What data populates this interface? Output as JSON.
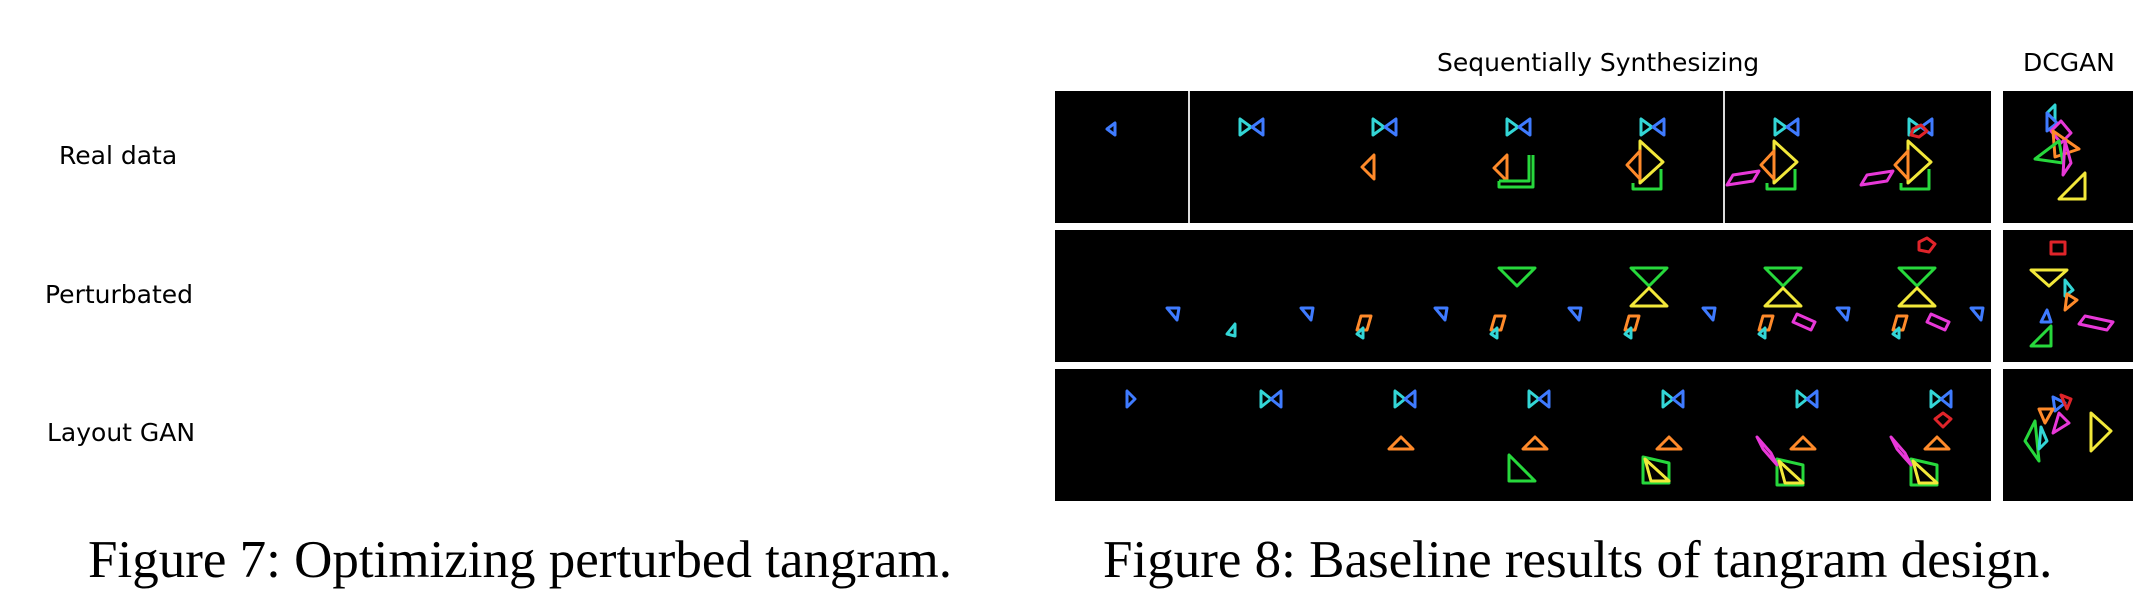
{
  "figure7": {
    "row_labels": [
      "Real data",
      "Perturbated",
      "Layout GAN"
    ],
    "caption": "Figure 7: Optimizing perturbed tangram."
  },
  "figure8": {
    "header_sequential": "Sequentially Synthesizing",
    "header_dcgan": "DCGAN",
    "caption": "Figure 8: Baseline results of tangram design."
  },
  "colors": {
    "blue": "#3f7bff",
    "cyan": "#33d6d6",
    "orange": "#ff8a2a",
    "green": "#27d83c",
    "yellow": "#f2e83a",
    "magenta": "#e838d8",
    "red": "#e0242a"
  }
}
